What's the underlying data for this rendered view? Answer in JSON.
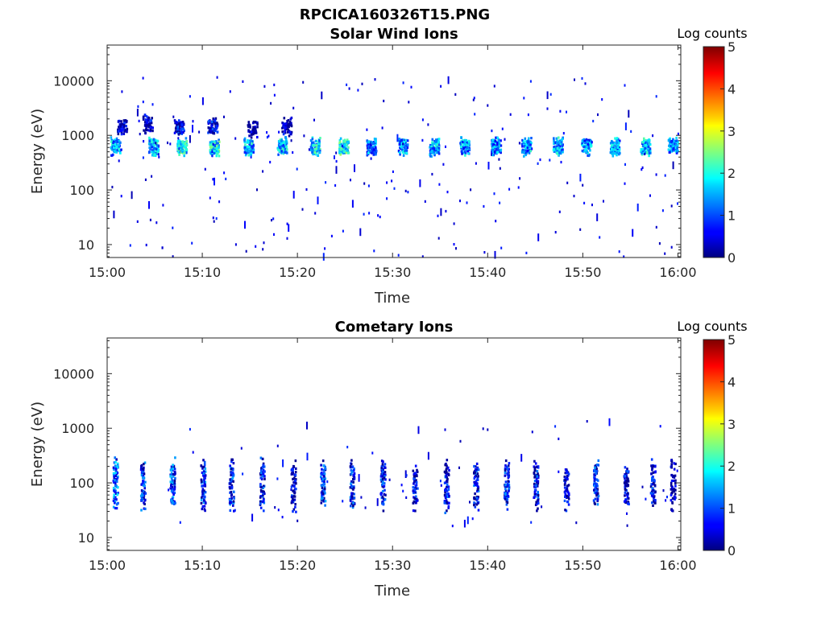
{
  "figure_title": "RPCICA160326T15.PNG",
  "chart_data": [
    {
      "type": "heatmap",
      "title": "Solar Wind Ions",
      "xlabel": "Time",
      "ylabel": "Energy (eV)",
      "x_ticks": [
        "15:00",
        "15:10",
        "15:20",
        "15:30",
        "15:40",
        "15:50",
        "16:00"
      ],
      "y_ticks": [
        "10",
        "100",
        "1000",
        "10000"
      ],
      "y_scale": "log",
      "ylim": [
        5.8,
        45000
      ],
      "xlim_minutes": [
        0,
        60.3
      ],
      "colorbar_label": "Log counts",
      "colorbar_ticks": [
        "0",
        "1",
        "2",
        "3",
        "4",
        "5"
      ],
      "clim": [
        0,
        5
      ],
      "colormap": "jet",
      "description": "Periodic sweeps (~3 min) of ion counts concentrated near 600-700 eV, peak log counts ~2.5",
      "bursts": [
        {
          "t": 0.8,
          "e": 660,
          "level": 2.2
        },
        {
          "t": 1.5,
          "e": 1500,
          "level": 1.0
        },
        {
          "t": 4.8,
          "e": 660,
          "level": 2.3
        },
        {
          "t": 4.2,
          "e": 1700,
          "level": 1.0
        },
        {
          "t": 7.8,
          "e": 650,
          "level": 2.6
        },
        {
          "t": 7.5,
          "e": 1500,
          "level": 1.2
        },
        {
          "t": 11.2,
          "e": 640,
          "level": 2.6
        },
        {
          "t": 11.0,
          "e": 1500,
          "level": 1.1
        },
        {
          "t": 14.8,
          "e": 660,
          "level": 2.3
        },
        {
          "t": 15.2,
          "e": 1400,
          "level": 0.8
        },
        {
          "t": 18.3,
          "e": 660,
          "level": 2.4
        },
        {
          "t": 18.8,
          "e": 1500,
          "level": 1.0
        },
        {
          "t": 21.8,
          "e": 650,
          "level": 2.5
        },
        {
          "t": 24.8,
          "e": 650,
          "level": 2.7
        },
        {
          "t": 27.7,
          "e": 620,
          "level": 2.0
        },
        {
          "t": 31.0,
          "e": 660,
          "level": 2.2
        },
        {
          "t": 34.3,
          "e": 640,
          "level": 2.3
        },
        {
          "t": 37.5,
          "e": 660,
          "level": 2.1
        },
        {
          "t": 40.8,
          "e": 660,
          "level": 2.1
        },
        {
          "t": 44.0,
          "e": 640,
          "level": 2.2
        },
        {
          "t": 47.3,
          "e": 650,
          "level": 2.3
        },
        {
          "t": 50.3,
          "e": 650,
          "level": 2.1
        },
        {
          "t": 53.3,
          "e": 640,
          "level": 2.2
        },
        {
          "t": 56.5,
          "e": 650,
          "level": 2.3
        },
        {
          "t": 59.4,
          "e": 660,
          "level": 2.1
        }
      ]
    },
    {
      "type": "heatmap",
      "title": "Cometary Ions",
      "xlabel": "Time",
      "ylabel": "Energy (eV)",
      "x_ticks": [
        "15:00",
        "15:10",
        "15:20",
        "15:30",
        "15:40",
        "15:50",
        "16:00"
      ],
      "y_ticks": [
        "10",
        "100",
        "1000",
        "10000"
      ],
      "y_scale": "log",
      "ylim": [
        5.8,
        45000
      ],
      "xlim_minutes": [
        0,
        60.3
      ],
      "colorbar_label": "Log counts",
      "colorbar_ticks": [
        "0",
        "1",
        "2",
        "3",
        "4",
        "5"
      ],
      "clim": [
        0,
        5
      ],
      "colormap": "jet",
      "description": "Periodic vertical streaks of cometary ions between ~40 and ~250 eV with a weaker band near 650 eV",
      "bursts": [
        {
          "t": 0.8,
          "e": 100,
          "level": 1.8
        },
        {
          "t": 3.7,
          "e": 95,
          "level": 1.5
        },
        {
          "t": 6.8,
          "e": 100,
          "level": 1.6
        },
        {
          "t": 10.0,
          "e": 100,
          "level": 1.6
        },
        {
          "t": 13.0,
          "e": 95,
          "level": 1.5
        },
        {
          "t": 16.2,
          "e": 100,
          "level": 1.3
        },
        {
          "t": 19.5,
          "e": 95,
          "level": 1.1
        },
        {
          "t": 22.6,
          "e": 100,
          "level": 1.5
        },
        {
          "t": 25.7,
          "e": 95,
          "level": 1.4
        },
        {
          "t": 28.9,
          "e": 100,
          "level": 1.4
        },
        {
          "t": 32.3,
          "e": 100,
          "level": 1.1
        },
        {
          "t": 35.6,
          "e": 90,
          "level": 1.3
        },
        {
          "t": 38.7,
          "e": 95,
          "level": 1.3
        },
        {
          "t": 41.9,
          "e": 100,
          "level": 1.4
        },
        {
          "t": 45.0,
          "e": 95,
          "level": 1.3
        },
        {
          "t": 48.2,
          "e": 100,
          "level": 1.1
        },
        {
          "t": 51.3,
          "e": 100,
          "level": 1.4
        },
        {
          "t": 54.5,
          "e": 95,
          "level": 1.2
        },
        {
          "t": 57.3,
          "e": 100,
          "level": 1.2
        },
        {
          "t": 59.4,
          "e": 100,
          "level": 1.0
        }
      ]
    }
  ]
}
